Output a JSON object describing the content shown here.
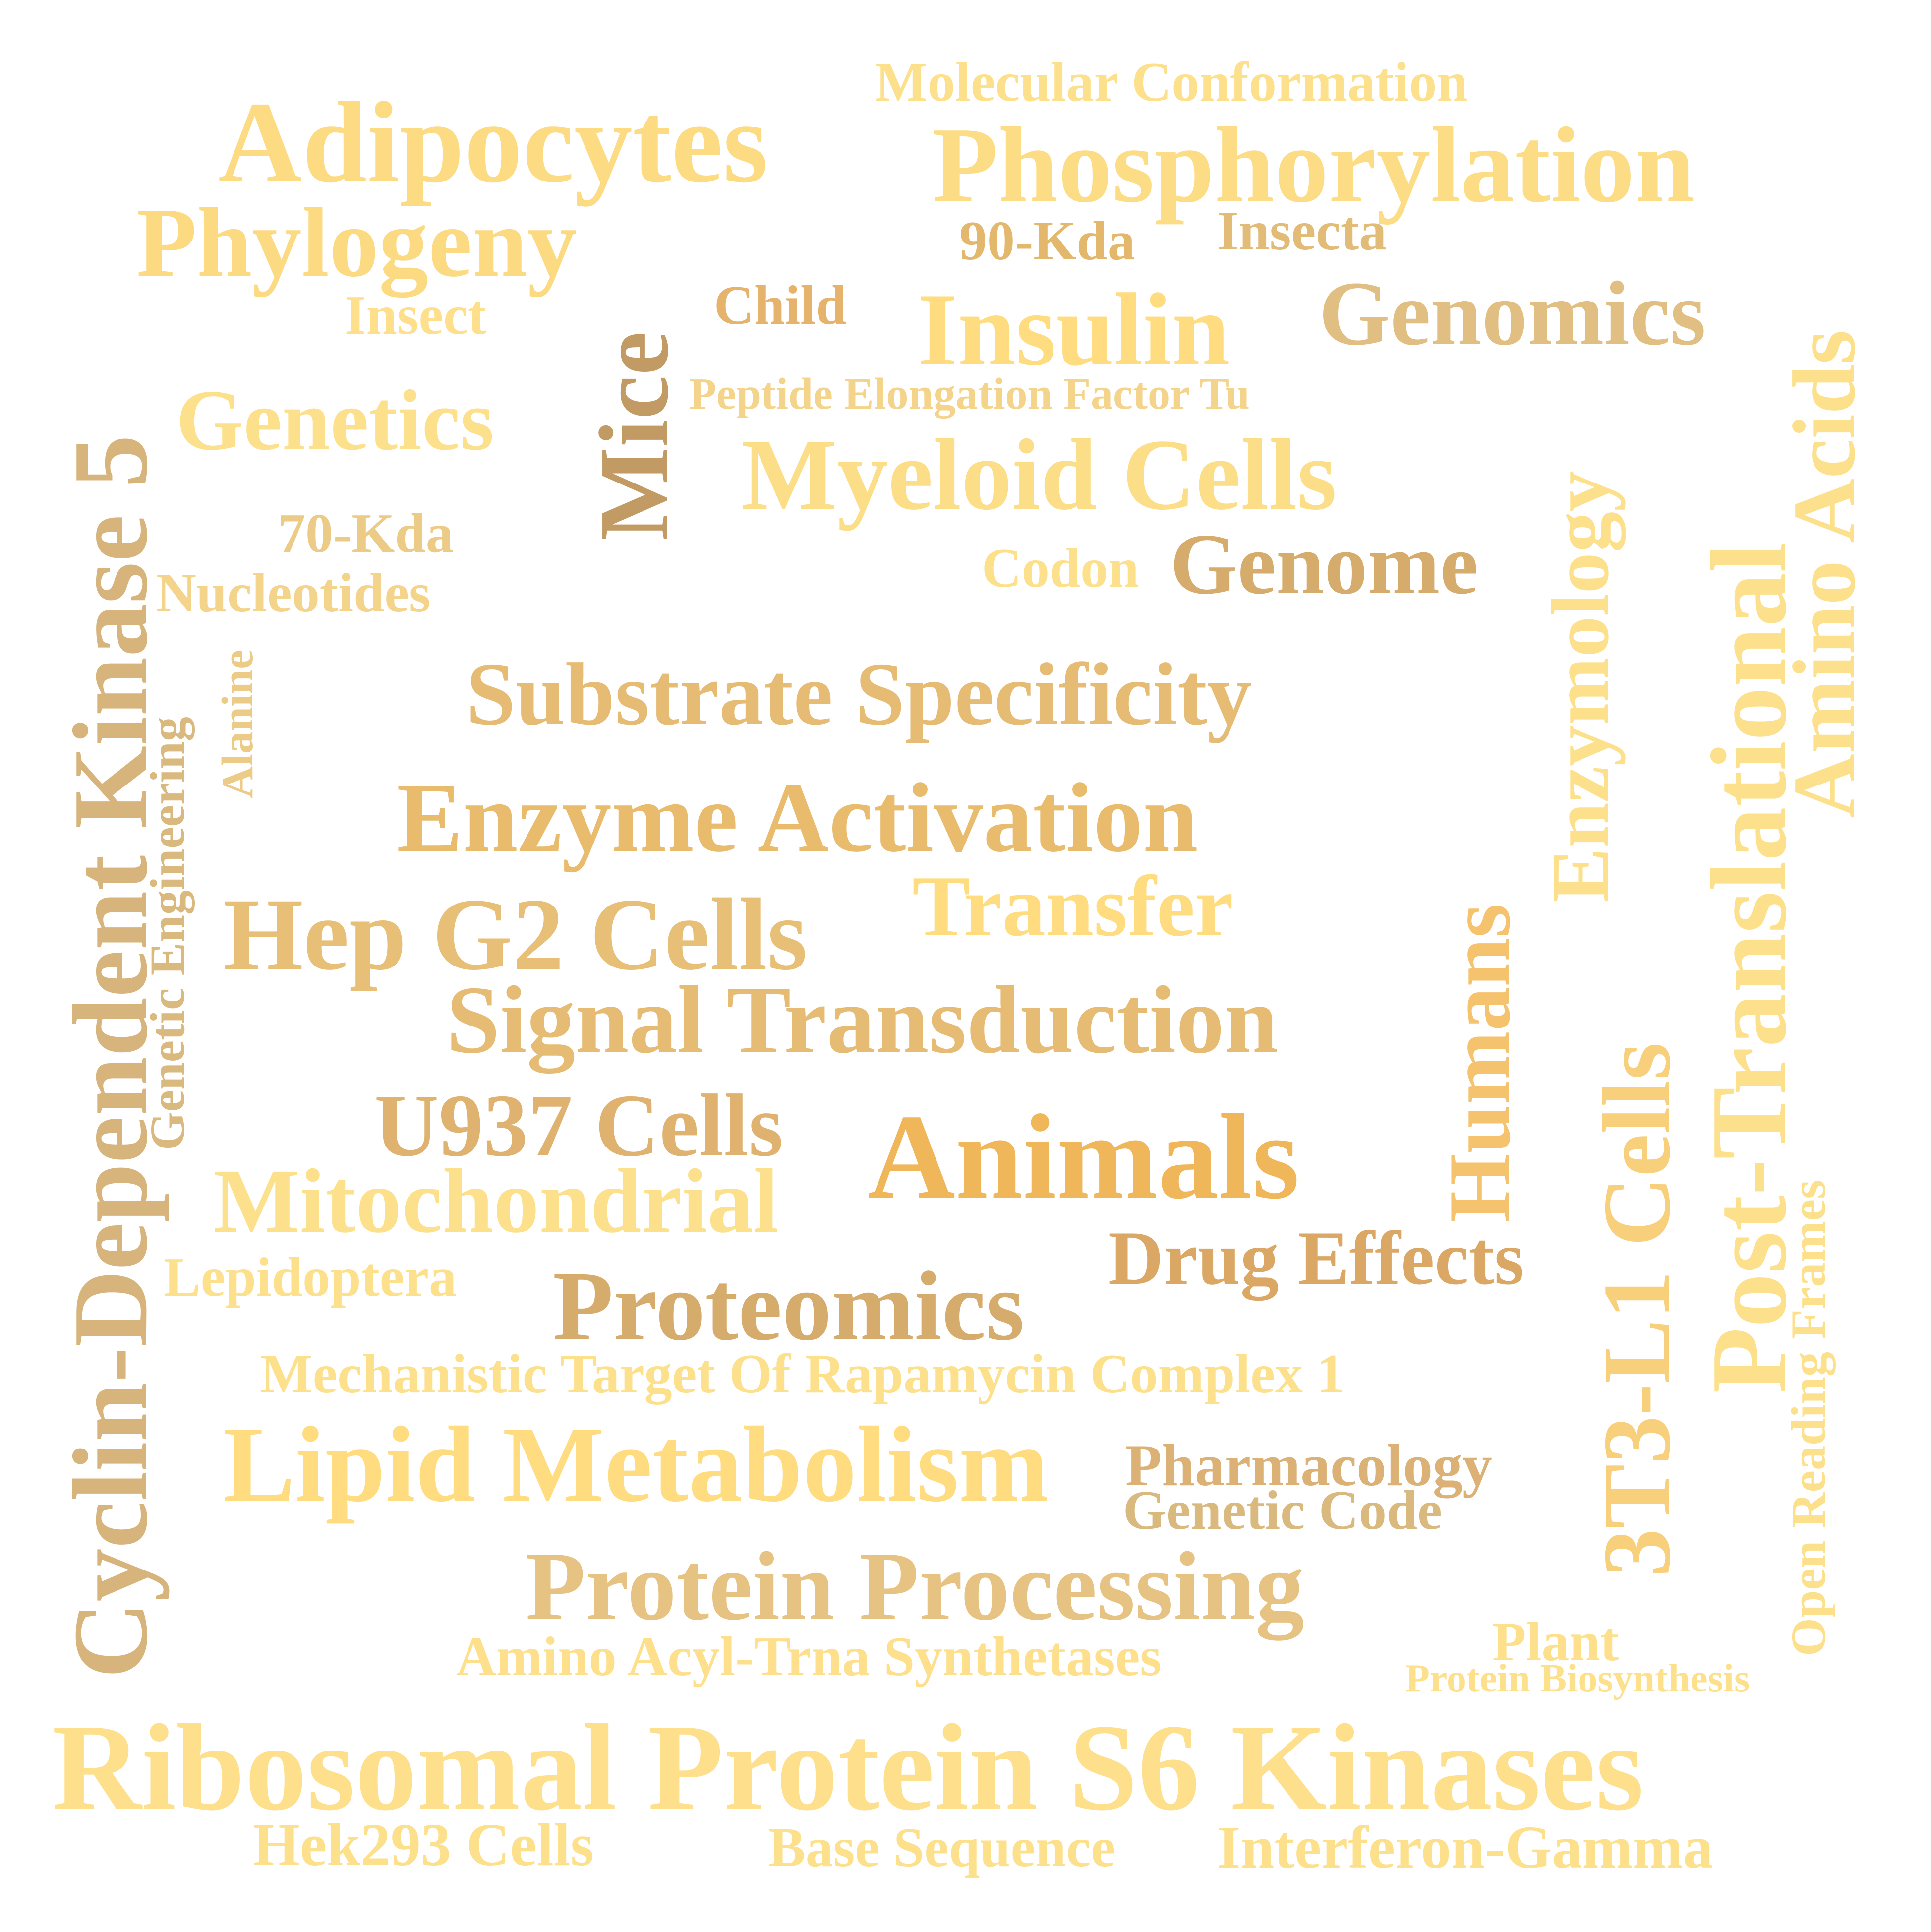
{
  "words": [
    {
      "text": "Molecular Conformation",
      "color": "#fde08b"
    },
    {
      "text": "Adipocytes",
      "color": "#fddb83"
    },
    {
      "text": "Phosphorylation",
      "color": "#fcdc85"
    },
    {
      "text": "Phylogeny",
      "color": "#fcda82"
    },
    {
      "text": "90-Kda",
      "color": "#e3b86c"
    },
    {
      "text": "Insecta",
      "color": "#e2bb76"
    },
    {
      "text": "Insect",
      "color": "#fddf8c"
    },
    {
      "text": "Child",
      "color": "#e6b36d"
    },
    {
      "text": "Insulin",
      "color": "#fedc7f"
    },
    {
      "text": "Genomics",
      "color": "#e1bf82"
    },
    {
      "text": "Mice",
      "color": "#c29a64"
    },
    {
      "text": "Genetics",
      "color": "#fde08b"
    },
    {
      "text": "Peptide Elongation Factor Tu",
      "color": "#f4d48b"
    },
    {
      "text": "Myeloid Cells",
      "color": "#fcdd88"
    },
    {
      "text": "Cyclin-Dependent Kinase 5",
      "color": "#d8b47d"
    },
    {
      "text": "70-Kda",
      "color": "#eccb86"
    },
    {
      "text": "Codon",
      "color": "#fde08b"
    },
    {
      "text": "Genome",
      "color": "#d6ac6c"
    },
    {
      "text": "Nucleotides",
      "color": "#f4d48b"
    },
    {
      "text": "Genetic Engineering",
      "color": "#dab97e"
    },
    {
      "text": "Alanine",
      "color": "#eccb86"
    },
    {
      "text": "Substrate Specificity",
      "color": "#e6bc75"
    },
    {
      "text": "Enzymology",
      "color": "#fde08b"
    },
    {
      "text": "Post-Translational",
      "color": "#fde08b"
    },
    {
      "text": "Amino Acids",
      "color": "#fde08b"
    },
    {
      "text": "Enzyme Activation",
      "color": "#e9bb6c"
    },
    {
      "text": "Transfer",
      "color": "#fedc7f"
    },
    {
      "text": "Hep G2 Cells",
      "color": "#e8bf76"
    },
    {
      "text": "Humans",
      "color": "#f5c36d"
    },
    {
      "text": "3T3-L1 Cells",
      "color": "#f8cf7a"
    },
    {
      "text": "Signal Transduction",
      "color": "#e6bc75"
    },
    {
      "text": "U937 Cells",
      "color": "#dfb270"
    },
    {
      "text": "Animals",
      "color": "#f0b65a"
    },
    {
      "text": "Open Reading Frames",
      "color": "#fde08b"
    },
    {
      "text": "Mitochondrial",
      "color": "#fde08b"
    },
    {
      "text": "Drug Effects",
      "color": "#dba764"
    },
    {
      "text": "Lepidoptera",
      "color": "#fde08b"
    },
    {
      "text": "Proteomics",
      "color": "#d6ac6c"
    },
    {
      "text": "Mechanistic Target Of Rapamycin Complex 1",
      "color": "#fde08b"
    },
    {
      "text": "Lipid Metabolism",
      "color": "#fedc7f"
    },
    {
      "text": "Pharmacology",
      "color": "#dcb175"
    },
    {
      "text": "Genetic Code",
      "color": "#dab97e"
    },
    {
      "text": "Protein Processing",
      "color": "#e6c382"
    },
    {
      "text": "Amino Acyl-Trna Synthetases",
      "color": "#fddf8c"
    },
    {
      "text": "Plant",
      "color": "#fddf8c"
    },
    {
      "text": "Protein Biosynthesis",
      "color": "#fde08b"
    },
    {
      "text": "Ribosomal Protein S6 Kinases",
      "color": "#fddf8c"
    },
    {
      "text": "Hek293 Cells",
      "color": "#fde08b"
    },
    {
      "text": "Base Sequence",
      "color": "#fde08b"
    },
    {
      "text": "Interferon-Gamma",
      "color": "#fde08b"
    }
  ]
}
